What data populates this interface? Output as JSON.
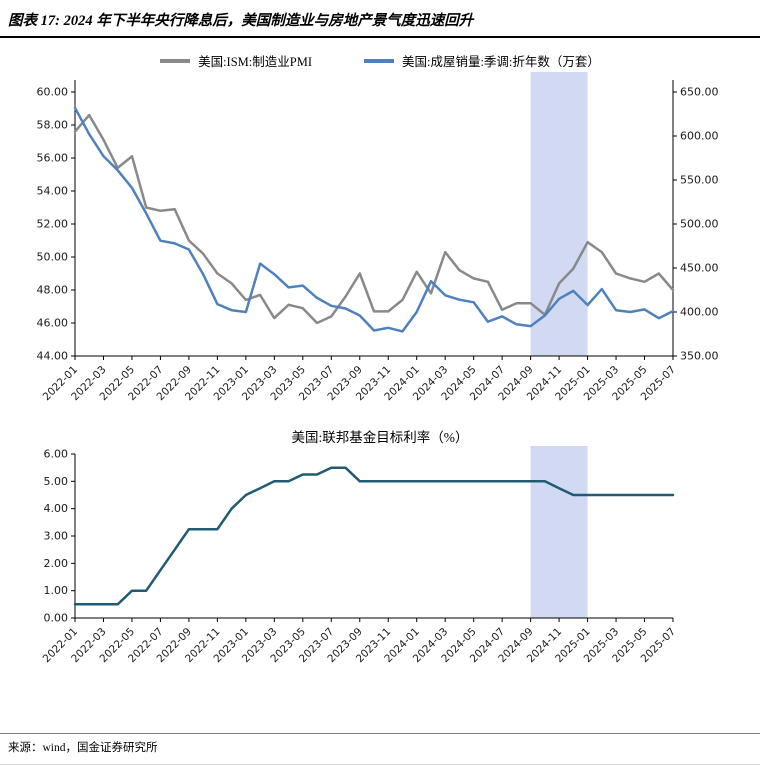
{
  "page": {
    "title": "图表 17: 2024 年下半年央行降息后，美国制造业与房地产景气度迅速回升",
    "source": "来源：wind，国金证券研究所"
  },
  "colors": {
    "ism_line": "#898989",
    "home_sales_line": "#4f81bd",
    "fed_rate_line": "#1f5c73",
    "highlight_band": "#ccd6f1",
    "axis": "#000000"
  },
  "chart_data": [
    {
      "type": "line",
      "legend": [
        "美国:ISM:制造业PMI",
        "美国:成屋销量:季调:折年数（万套）"
      ],
      "x": [
        "2022-01",
        "2022-02",
        "2022-03",
        "2022-04",
        "2022-05",
        "2022-06",
        "2022-07",
        "2022-08",
        "2022-09",
        "2022-10",
        "2022-11",
        "2022-12",
        "2023-01",
        "2023-02",
        "2023-03",
        "2023-04",
        "2023-05",
        "2023-06",
        "2023-07",
        "2023-08",
        "2023-09",
        "2023-10",
        "2023-11",
        "2023-12",
        "2024-01",
        "2024-02",
        "2024-03",
        "2024-04",
        "2024-05",
        "2024-06",
        "2024-07",
        "2024-08",
        "2024-09",
        "2024-10",
        "2024-11",
        "2024-12",
        "2025-01",
        "2025-02",
        "2025-03",
        "2025-04",
        "2025-05",
        "2025-06",
        "2025-07"
      ],
      "x_tick_labels": [
        "2022-01",
        "2022-03",
        "2022-05",
        "2022-07",
        "2022-09",
        "2022-11",
        "2023-01",
        "2023-03",
        "2023-05",
        "2023-07",
        "2023-09",
        "2023-11",
        "2024-01",
        "2024-03",
        "2024-05",
        "2024-07",
        "2024-09",
        "2024-11",
        "2025-01",
        "2025-03",
        "2025-05",
        "2025-07"
      ],
      "series": [
        {
          "name": "美国:ISM:制造业PMI",
          "axis": "left",
          "color": "#898989",
          "values": [
            57.6,
            58.6,
            57.1,
            55.4,
            56.1,
            53.0,
            52.8,
            52.9,
            51.0,
            50.2,
            49.0,
            48.4,
            47.4,
            47.7,
            46.3,
            47.1,
            46.9,
            46.0,
            46.4,
            47.6,
            49.0,
            46.7,
            46.7,
            47.4,
            49.1,
            47.8,
            50.3,
            49.2,
            48.7,
            48.5,
            46.8,
            47.2,
            47.2,
            46.5,
            48.4,
            49.3,
            50.9,
            50.3,
            49.0,
            48.7,
            48.5,
            49.0,
            48.0
          ]
        },
        {
          "name": "美国:成屋销量:季调:折年数（万套）",
          "axis": "right",
          "color": "#4f81bd",
          "values": [
            632,
            602,
            577,
            561,
            541,
            512,
            481,
            478,
            471,
            443,
            409,
            402,
            400,
            455,
            443,
            428,
            430,
            416,
            407,
            404,
            396,
            379,
            382,
            378,
            400,
            435,
            419,
            414,
            411,
            389,
            395,
            386,
            384,
            396,
            415,
            424,
            408,
            426,
            402,
            400,
            403,
            393,
            401
          ]
        }
      ],
      "left_axis": {
        "min": 44,
        "max": 60,
        "step": 2
      },
      "right_axis": {
        "min": 350,
        "max": 650,
        "step": 50
      },
      "highlight_band": {
        "start": "2024-09",
        "end": "2025-01"
      }
    },
    {
      "type": "line",
      "title": "美国:联邦基金目标利率（%）",
      "x": [
        "2022-01",
        "2022-02",
        "2022-03",
        "2022-04",
        "2022-05",
        "2022-06",
        "2022-07",
        "2022-08",
        "2022-09",
        "2022-10",
        "2022-11",
        "2022-12",
        "2023-01",
        "2023-02",
        "2023-03",
        "2023-04",
        "2023-05",
        "2023-06",
        "2023-07",
        "2023-08",
        "2023-09",
        "2023-10",
        "2023-11",
        "2023-12",
        "2024-01",
        "2024-02",
        "2024-03",
        "2024-04",
        "2024-05",
        "2024-06",
        "2024-07",
        "2024-08",
        "2024-09",
        "2024-10",
        "2024-11",
        "2024-12",
        "2025-01",
        "2025-02",
        "2025-03",
        "2025-04",
        "2025-05",
        "2025-06",
        "2025-07"
      ],
      "x_tick_labels": [
        "2022-01",
        "2022-03",
        "2022-05",
        "2022-07",
        "2022-09",
        "2022-11",
        "2023-01",
        "2023-03",
        "2023-05",
        "2023-07",
        "2023-09",
        "2023-11",
        "2024-01",
        "2024-03",
        "2024-05",
        "2024-07",
        "2024-09",
        "2024-11",
        "2025-01",
        "2025-03",
        "2025-05",
        "2025-07"
      ],
      "series": [
        {
          "name": "美国:联邦基金目标利率（%）",
          "axis": "left",
          "color": "#1f5c73",
          "values": [
            0.5,
            0.5,
            0.5,
            0.5,
            1.0,
            1.0,
            1.75,
            2.5,
            3.25,
            3.25,
            3.25,
            4.0,
            4.5,
            4.75,
            5.0,
            5.0,
            5.25,
            5.25,
            5.5,
            5.5,
            5.0,
            5.0,
            5.0,
            5.0,
            5.0,
            5.0,
            5.0,
            5.0,
            5.0,
            5.0,
            5.0,
            5.0,
            5.0,
            5.0,
            4.75,
            4.5,
            4.5,
            4.5,
            4.5,
            4.5,
            4.5,
            4.5,
            4.5
          ]
        }
      ],
      "left_axis": {
        "min": 0,
        "max": 6,
        "step": 1
      },
      "highlight_band": {
        "start": "2024-09",
        "end": "2025-01"
      }
    }
  ]
}
